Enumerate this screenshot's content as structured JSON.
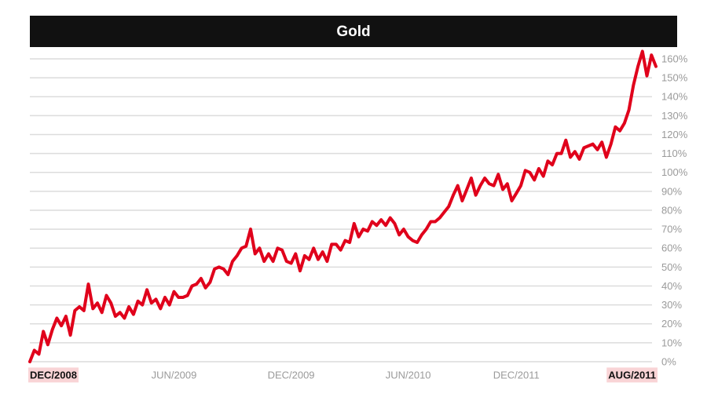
{
  "chart_data": {
    "type": "line",
    "title": "Gold",
    "values": [
      0,
      6,
      4,
      16,
      9,
      17,
      23,
      19,
      24,
      14,
      27,
      29,
      27,
      41,
      28,
      31,
      26,
      35,
      31,
      24,
      26,
      23,
      29,
      25,
      32,
      30,
      38,
      31,
      33,
      28,
      34,
      30,
      37,
      34,
      34,
      35,
      40,
      41,
      44,
      39,
      42,
      49,
      50,
      49,
      46,
      53,
      56,
      60,
      61,
      70,
      57,
      60,
      53,
      57,
      53,
      60,
      59,
      53,
      52,
      57,
      48,
      56,
      54,
      60,
      54,
      58,
      53,
      62,
      62,
      59,
      64,
      63,
      73,
      66,
      70,
      69,
      74,
      72,
      75,
      72,
      76,
      73,
      67,
      70,
      66,
      64,
      63,
      67,
      70,
      74,
      74,
      76,
      79,
      82,
      88,
      93,
      85,
      91,
      97,
      88,
      93,
      97,
      94,
      93,
      99,
      91,
      94,
      85,
      89,
      93,
      101,
      100,
      96,
      102,
      98,
      106,
      104,
      110,
      110,
      117,
      108,
      111,
      107,
      113,
      114,
      115,
      112,
      116,
      108,
      115,
      124,
      122,
      126,
      133,
      146,
      156,
      164,
      151,
      162,
      156
    ],
    "color": "#e0001b",
    "xticks": [
      {
        "value": 0,
        "label": "DEC/2008"
      },
      {
        "value": 32,
        "label": "JUN/2009"
      },
      {
        "value": 58,
        "label": "DEC/2009"
      },
      {
        "value": 84,
        "label": "JUN/2010"
      },
      {
        "value": 108,
        "label": "DEC/2011"
      },
      {
        "value": 139,
        "label": "AUG/2011"
      }
    ],
    "ylim": [
      0,
      160
    ],
    "yticks": [
      {
        "value": 0,
        "label": "0%"
      },
      {
        "value": 10,
        "label": "10%"
      },
      {
        "value": 20,
        "label": "20%"
      },
      {
        "value": 30,
        "label": "30%"
      },
      {
        "value": 40,
        "label": "40%"
      },
      {
        "value": 50,
        "label": "50%"
      },
      {
        "value": 60,
        "label": "60%"
      },
      {
        "value": 70,
        "label": "70%"
      },
      {
        "value": 80,
        "label": "80%"
      },
      {
        "value": 90,
        "label": "90%"
      },
      {
        "value": 100,
        "label": "100%"
      },
      {
        "value": 110,
        "label": "110%"
      },
      {
        "value": 120,
        "label": "120%"
      },
      {
        "value": 130,
        "label": "130%"
      },
      {
        "value": 140,
        "label": "140%"
      },
      {
        "value": 150,
        "label": "150%"
      },
      {
        "value": 160,
        "label": "160%"
      }
    ],
    "grid": true
  }
}
